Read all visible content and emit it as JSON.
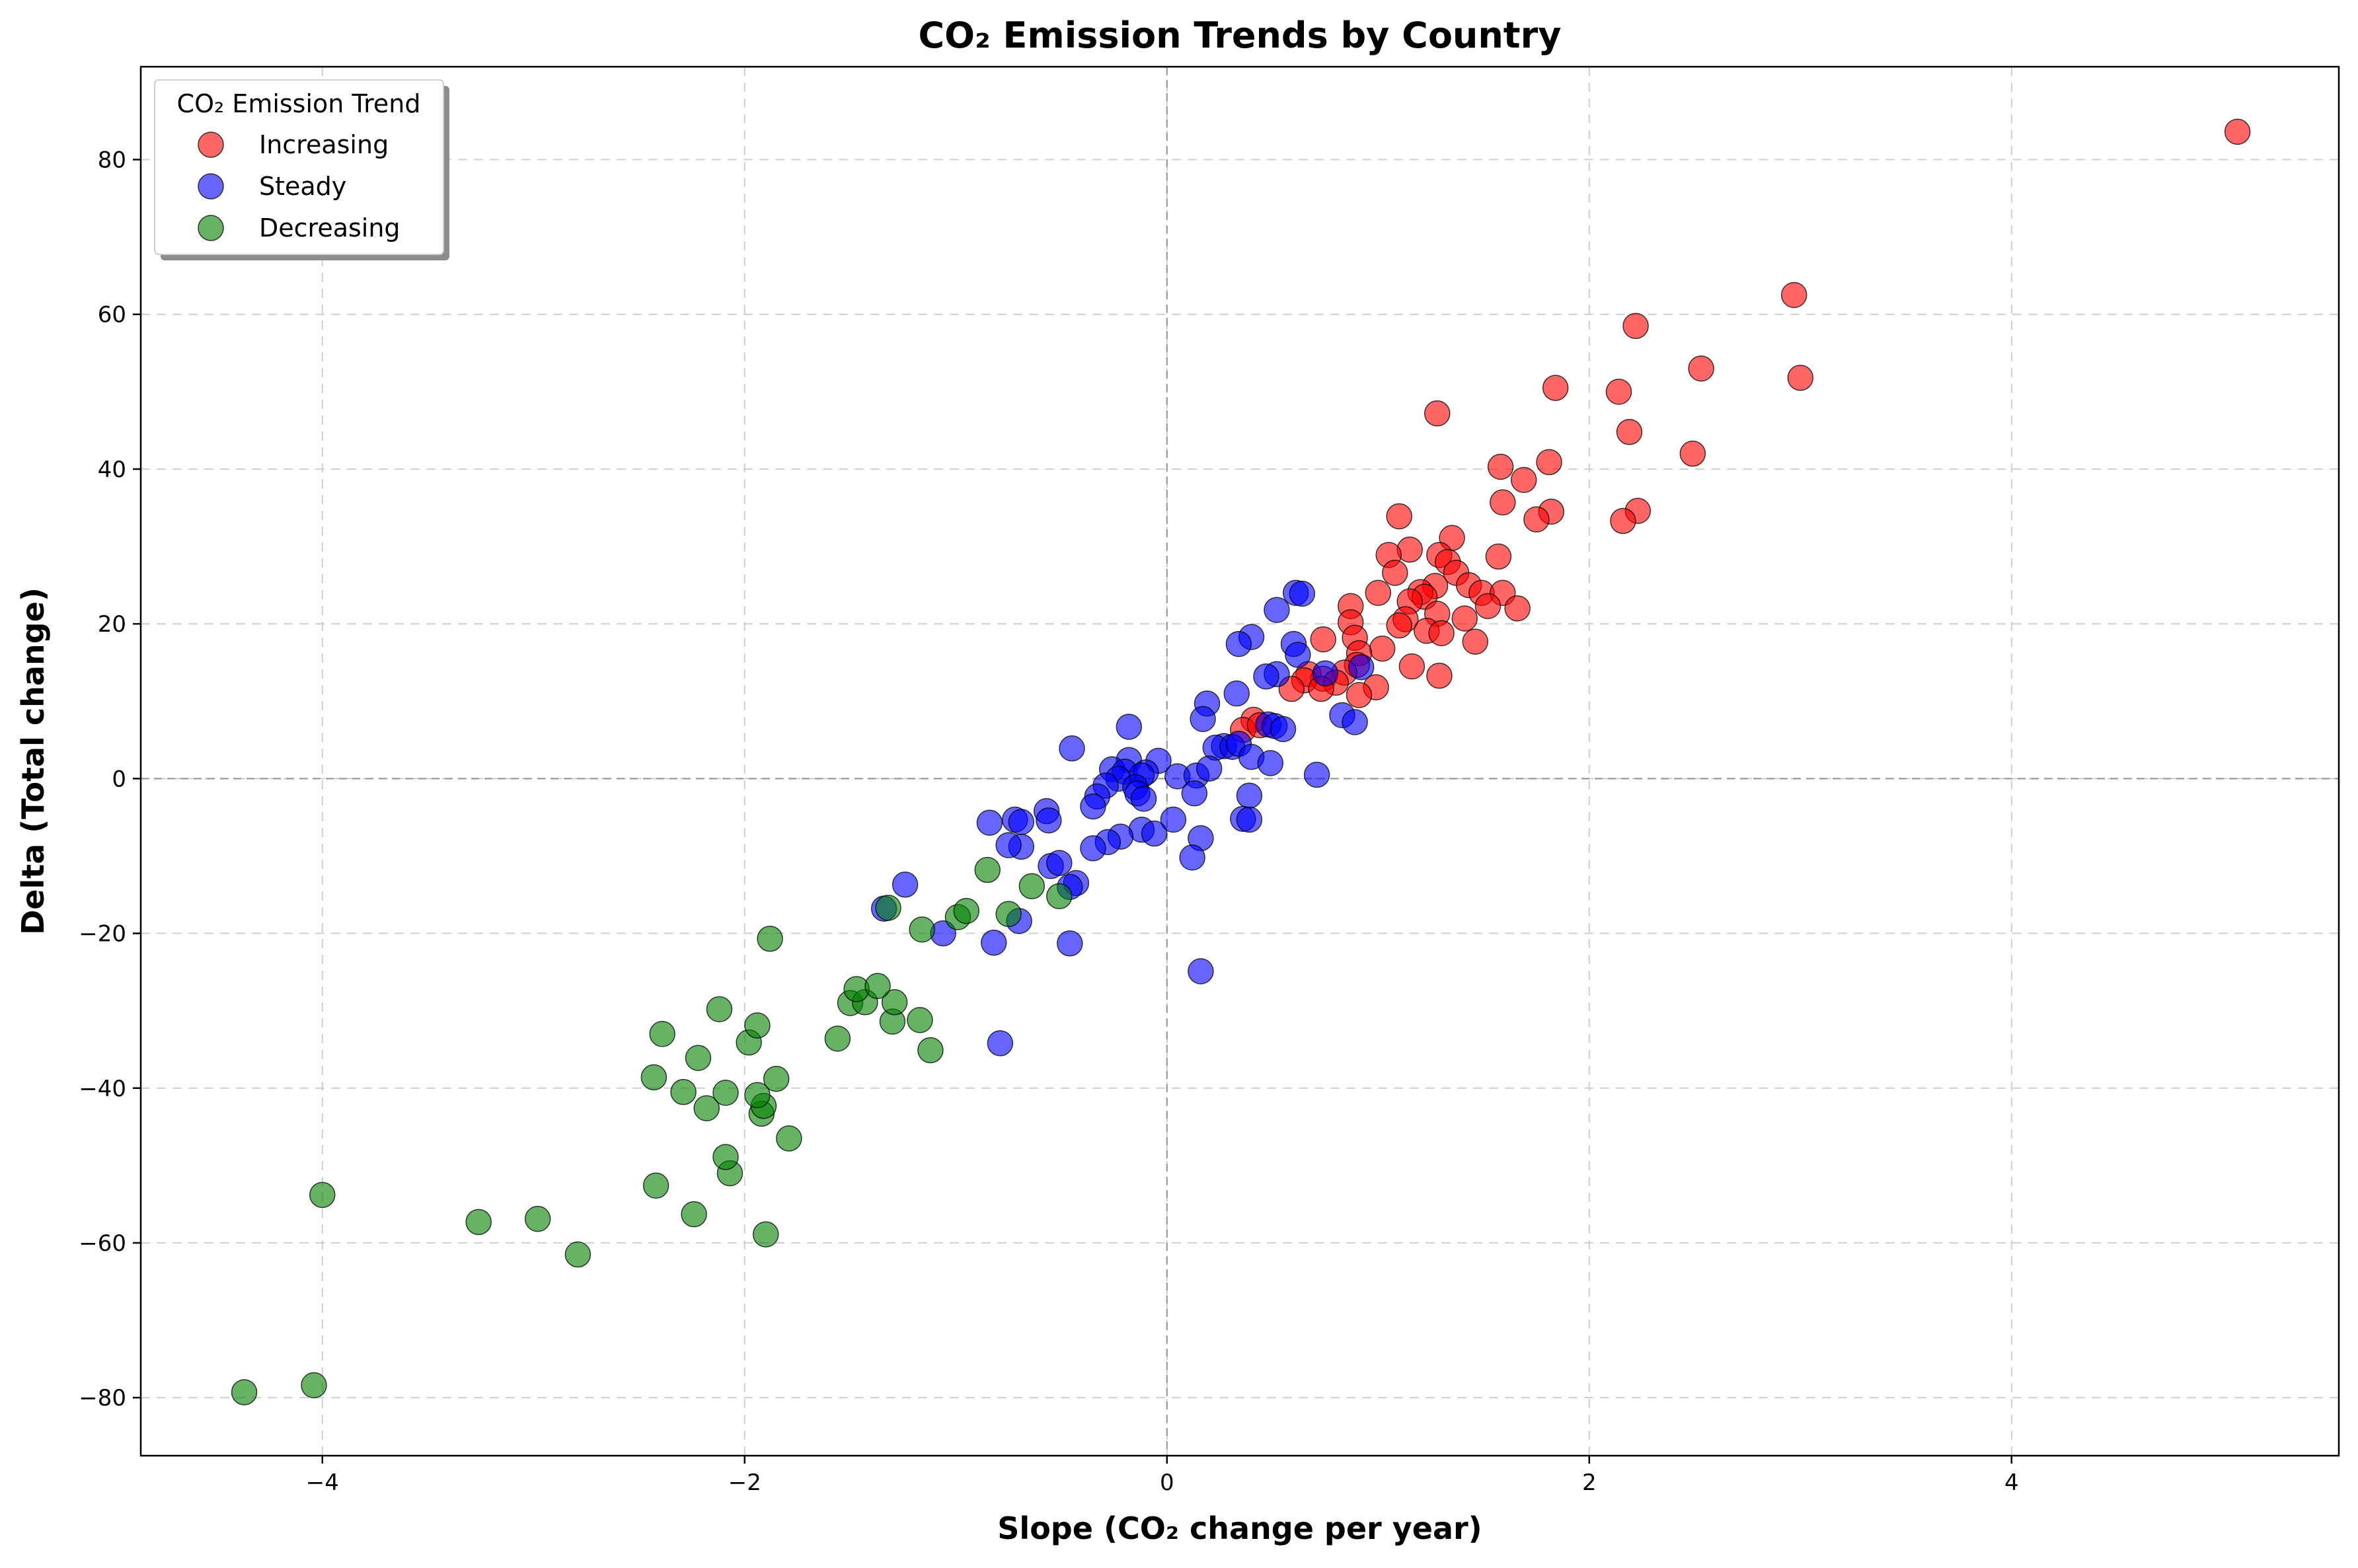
{
  "chart_data": {
    "type": "scatter",
    "title": "CO₂ Emission Trends by Country",
    "xlabel": "Slope (CO₂ change per year)",
    "ylabel": "Delta (Total change)",
    "xlim": [
      -4.86,
      5.55
    ],
    "ylim": [
      -87.5,
      92
    ],
    "xticks": [
      -4,
      -2,
      0,
      2,
      4
    ],
    "yticks": [
      -80,
      -60,
      -40,
      -20,
      0,
      20,
      40,
      60,
      80
    ],
    "xtick_labels": [
      "−4",
      "−2",
      "0",
      "2",
      "4"
    ],
    "ytick_labels": [
      "−80",
      "−60",
      "−40",
      "−20",
      "0",
      "20",
      "40",
      "60",
      "80"
    ],
    "grid": true,
    "zero_lines": true,
    "legend": {
      "title": "CO₂ Emission Trend",
      "placement": "top-left"
    },
    "series": [
      {
        "name": "Increasing",
        "color": "#ff0000",
        "points": [
          [
            5.07,
            83.6
          ],
          [
            2.97,
            62.5
          ],
          [
            2.22,
            58.5
          ],
          [
            2.53,
            53.0
          ],
          [
            3.0,
            51.8
          ],
          [
            1.84,
            50.5
          ],
          [
            2.14,
            50.0
          ],
          [
            1.28,
            47.2
          ],
          [
            2.19,
            44.8
          ],
          [
            2.49,
            42.0
          ],
          [
            1.58,
            40.3
          ],
          [
            1.81,
            40.9
          ],
          [
            1.69,
            38.6
          ],
          [
            1.59,
            35.7
          ],
          [
            2.23,
            34.6
          ],
          [
            1.82,
            34.5
          ],
          [
            1.1,
            33.9
          ],
          [
            1.75,
            33.5
          ],
          [
            2.16,
            33.3
          ],
          [
            1.35,
            31.1
          ],
          [
            1.15,
            29.6
          ],
          [
            1.05,
            28.9
          ],
          [
            1.29,
            28.9
          ],
          [
            1.33,
            28.0
          ],
          [
            1.57,
            28.7
          ],
          [
            1.08,
            26.6
          ],
          [
            1.37,
            26.6
          ],
          [
            1.43,
            25.0
          ],
          [
            1.0,
            24.0
          ],
          [
            1.27,
            24.9
          ],
          [
            1.2,
            24.1
          ],
          [
            1.49,
            24.0
          ],
          [
            1.59,
            24.0
          ],
          [
            1.22,
            23.5
          ],
          [
            1.15,
            22.9
          ],
          [
            0.87,
            22.3
          ],
          [
            1.52,
            22.3
          ],
          [
            1.66,
            22.0
          ],
          [
            1.28,
            21.3
          ],
          [
            1.13,
            20.6
          ],
          [
            1.41,
            20.7
          ],
          [
            0.87,
            20.2
          ],
          [
            1.1,
            19.8
          ],
          [
            1.23,
            19.1
          ],
          [
            1.3,
            18.8
          ],
          [
            0.89,
            18.2
          ],
          [
            0.74,
            18.0
          ],
          [
            1.46,
            17.7
          ],
          [
            1.02,
            16.8
          ],
          [
            0.91,
            16.2
          ],
          [
            0.9,
            14.7
          ],
          [
            1.16,
            14.5
          ],
          [
            0.84,
            13.7
          ],
          [
            0.67,
            13.5
          ],
          [
            1.29,
            13.3
          ],
          [
            0.74,
            12.9
          ],
          [
            0.8,
            12.4
          ],
          [
            0.65,
            12.7
          ],
          [
            0.73,
            11.6
          ],
          [
            0.59,
            11.6
          ],
          [
            0.99,
            11.8
          ],
          [
            0.91,
            10.8
          ],
          [
            0.41,
            7.6
          ],
          [
            0.36,
            6.3
          ],
          [
            0.44,
            6.9
          ]
        ]
      },
      {
        "name": "Steady",
        "color": "#0000ff",
        "points": [
          [
            0.61,
            24.0
          ],
          [
            0.64,
            23.9
          ],
          [
            0.52,
            21.8
          ],
          [
            0.4,
            18.3
          ],
          [
            0.34,
            17.4
          ],
          [
            0.6,
            17.4
          ],
          [
            0.62,
            16.0
          ],
          [
            0.52,
            13.5
          ],
          [
            0.47,
            13.2
          ],
          [
            0.75,
            13.6
          ],
          [
            0.92,
            14.4
          ],
          [
            0.33,
            11.0
          ],
          [
            0.19,
            9.7
          ],
          [
            0.17,
            7.7
          ],
          [
            0.83,
            8.2
          ],
          [
            0.89,
            7.3
          ],
          [
            0.48,
            7.0
          ],
          [
            0.51,
            6.8
          ],
          [
            0.55,
            6.4
          ],
          [
            -0.18,
            6.7
          ],
          [
            0.27,
            4.2
          ],
          [
            0.23,
            4.0
          ],
          [
            0.31,
            4.1
          ],
          [
            0.34,
            4.5
          ],
          [
            0.4,
            2.8
          ],
          [
            -0.45,
            3.9
          ],
          [
            -0.18,
            2.4
          ],
          [
            -0.04,
            2.3
          ],
          [
            0.49,
            2.0
          ],
          [
            -0.26,
            1.2
          ],
          [
            -0.2,
            0.9
          ],
          [
            -0.1,
            0.8
          ],
          [
            -0.12,
            0.4
          ],
          [
            0.05,
            0.3
          ],
          [
            0.14,
            0.4
          ],
          [
            0.2,
            1.3
          ],
          [
            0.71,
            0.5
          ],
          [
            -0.23,
            0.0
          ],
          [
            -0.29,
            -0.9
          ],
          [
            -0.15,
            -1.1
          ],
          [
            -0.14,
            -1.9
          ],
          [
            -0.33,
            -2.3
          ],
          [
            -0.11,
            -2.6
          ],
          [
            0.13,
            -1.9
          ],
          [
            0.39,
            -2.2
          ],
          [
            -0.35,
            -3.6
          ],
          [
            0.03,
            -5.3
          ],
          [
            0.36,
            -5.2
          ],
          [
            0.39,
            -5.3
          ],
          [
            -0.57,
            -4.2
          ],
          [
            -0.56,
            -5.4
          ],
          [
            -0.72,
            -5.3
          ],
          [
            -0.69,
            -5.6
          ],
          [
            -0.84,
            -5.7
          ],
          [
            -0.12,
            -6.6
          ],
          [
            -0.06,
            -7.1
          ],
          [
            -0.22,
            -7.5
          ],
          [
            -0.28,
            -8.2
          ],
          [
            -0.69,
            -8.8
          ],
          [
            -0.75,
            -8.6
          ],
          [
            -0.35,
            -9.0
          ],
          [
            0.16,
            -7.7
          ],
          [
            0.12,
            -10.2
          ],
          [
            -0.55,
            -11.3
          ],
          [
            -0.51,
            -10.9
          ],
          [
            -1.24,
            -13.7
          ],
          [
            -0.43,
            -13.5
          ],
          [
            -0.46,
            -14.0
          ],
          [
            -1.34,
            -16.8
          ],
          [
            -1.06,
            -20.0
          ],
          [
            -0.82,
            -21.2
          ],
          [
            -0.7,
            -18.4
          ],
          [
            -0.46,
            -21.3
          ],
          [
            0.16,
            -24.9
          ],
          [
            -0.79,
            -34.2
          ]
        ]
      },
      {
        "name": "Decreasing",
        "color": "#008000",
        "points": [
          [
            -4.37,
            -79.3
          ],
          [
            -4.04,
            -78.4
          ],
          [
            -2.79,
            -61.5
          ],
          [
            -4.0,
            -53.8
          ],
          [
            -3.26,
            -57.3
          ],
          [
            -2.98,
            -56.9
          ],
          [
            -1.9,
            -58.9
          ],
          [
            -2.24,
            -56.3
          ],
          [
            -2.42,
            -52.6
          ],
          [
            -2.07,
            -51.0
          ],
          [
            -2.09,
            -48.9
          ],
          [
            -1.79,
            -46.5
          ],
          [
            -1.92,
            -43.3
          ],
          [
            -1.91,
            -42.3
          ],
          [
            -2.18,
            -42.6
          ],
          [
            -2.29,
            -40.5
          ],
          [
            -2.09,
            -40.6
          ],
          [
            -1.94,
            -40.9
          ],
          [
            -1.85,
            -38.8
          ],
          [
            -2.43,
            -38.6
          ],
          [
            -2.22,
            -36.1
          ],
          [
            -1.98,
            -34.1
          ],
          [
            -2.39,
            -33.0
          ],
          [
            -1.94,
            -31.9
          ],
          [
            -2.12,
            -29.8
          ],
          [
            -1.56,
            -33.6
          ],
          [
            -1.12,
            -35.1
          ],
          [
            -1.3,
            -31.4
          ],
          [
            -1.17,
            -31.2
          ],
          [
            -1.29,
            -28.9
          ],
          [
            -1.5,
            -29.0
          ],
          [
            -1.43,
            -28.9
          ],
          [
            -1.47,
            -27.2
          ],
          [
            -1.37,
            -26.8
          ],
          [
            -1.88,
            -20.7
          ],
          [
            -1.16,
            -19.5
          ],
          [
            -0.99,
            -17.9
          ],
          [
            -0.95,
            -17.1
          ],
          [
            -0.75,
            -17.5
          ],
          [
            -1.32,
            -16.7
          ],
          [
            -0.51,
            -15.2
          ],
          [
            -0.64,
            -13.9
          ],
          [
            -0.85,
            -11.8
          ]
        ]
      }
    ]
  }
}
